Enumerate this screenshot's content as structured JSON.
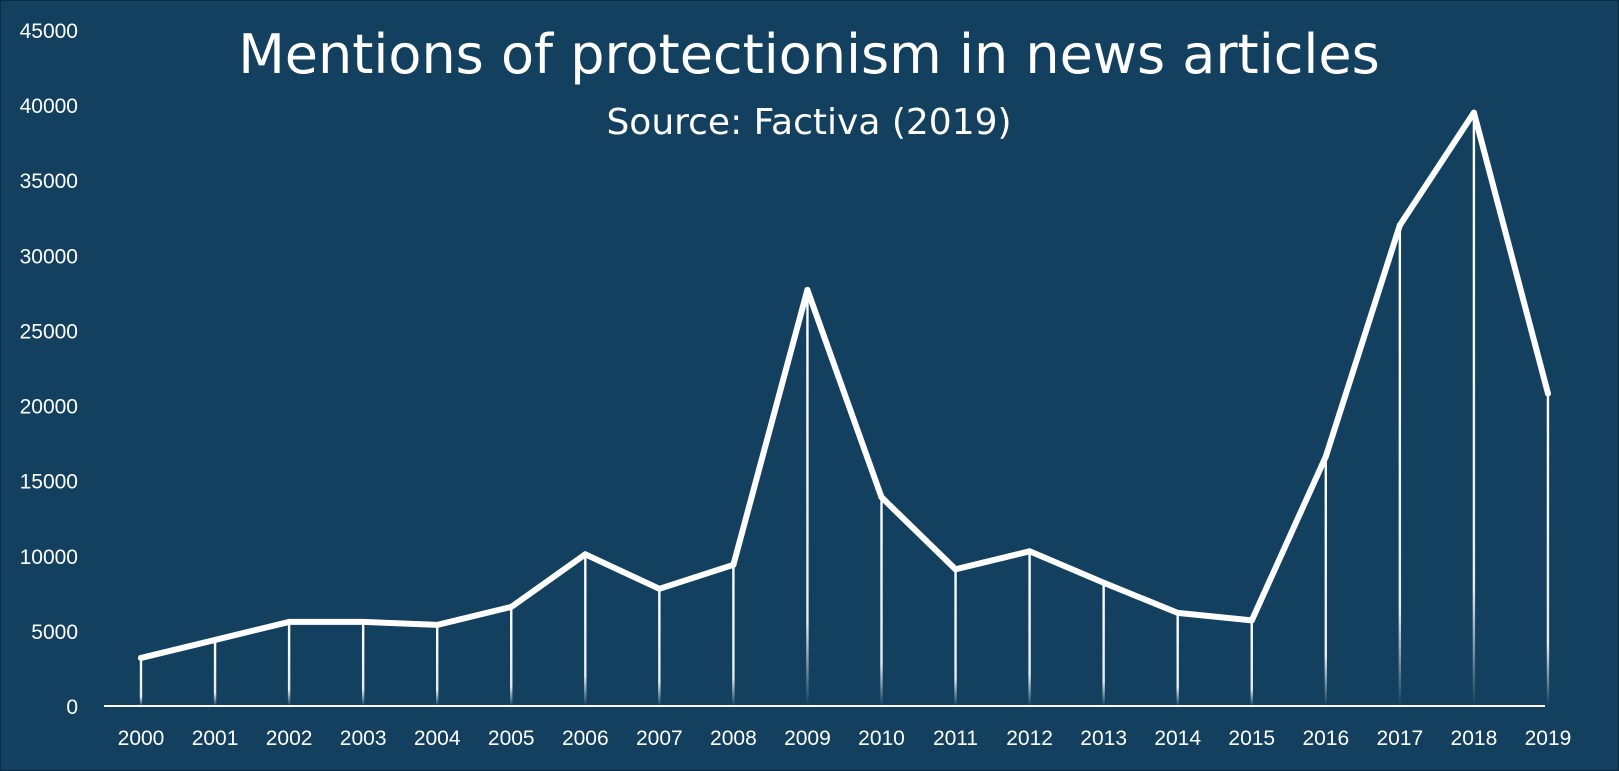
{
  "colors": {
    "background": "#12405e",
    "border": "#0c2c42",
    "line": "#ffffff",
    "text": "#ffffff",
    "axis": "#ffffff"
  },
  "chart_data": {
    "type": "line",
    "title": "Mentions of protectionism in news articles",
    "subtitle": "Source: Factiva (2019)",
    "xlabel": "",
    "ylabel": "",
    "categories": [
      "2000",
      "2001",
      "2002",
      "2003",
      "2004",
      "2005",
      "2006",
      "2007",
      "2008",
      "2009",
      "2010",
      "2011",
      "2012",
      "2013",
      "2014",
      "2015",
      "2016",
      "2017",
      "2018",
      "2019"
    ],
    "values": [
      3200,
      4400,
      5600,
      5600,
      5400,
      6600,
      10100,
      7800,
      9400,
      27700,
      13900,
      9100,
      10300,
      8200,
      6200,
      5700,
      16600,
      32000,
      39500,
      20800
    ],
    "ylim": [
      0,
      45000
    ],
    "yticks": [
      0,
      5000,
      10000,
      15000,
      20000,
      25000,
      30000,
      35000,
      40000,
      45000
    ],
    "drop_lines": true,
    "grid": false,
    "legend": "none"
  }
}
